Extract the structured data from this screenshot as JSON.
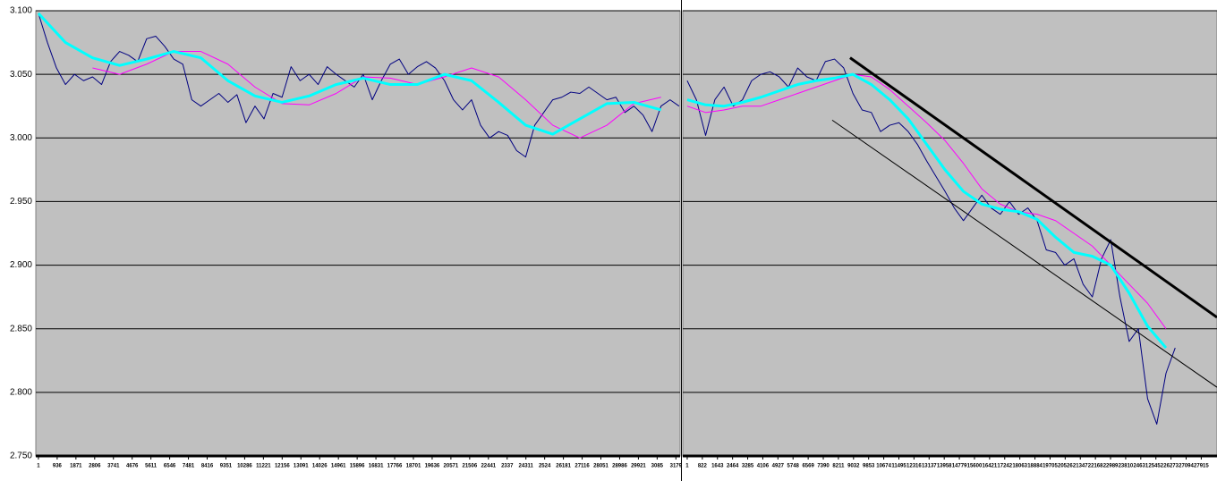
{
  "chart_data": [
    {
      "type": "line",
      "grid": true,
      "show_ytick_labels": true,
      "xlim": [
        -130,
        32000
      ],
      "ylim": [
        2.75,
        3.1
      ],
      "yticks": [
        {
          "value": 2.75,
          "label": "2.750"
        },
        {
          "value": 2.8,
          "label": "2.800"
        },
        {
          "value": 2.85,
          "label": "2.850"
        },
        {
          "value": 2.9,
          "label": "2.900"
        },
        {
          "value": 2.95,
          "label": "2.950"
        },
        {
          "value": 3.0,
          "label": "3.000"
        },
        {
          "value": 3.05,
          "label": "3.050"
        },
        {
          "value": 3.1,
          "label": "3.100"
        }
      ],
      "xticks": [
        1,
        936,
        1871,
        2806,
        3741,
        4676,
        5611,
        6546,
        7481,
        8416,
        9351,
        10286,
        11221,
        12156,
        13091,
        14026,
        14961,
        15896,
        16831,
        17766,
        18701,
        19636,
        20571,
        21506,
        22441,
        {
          "value": 23376,
          "label": "2337"
        },
        24311,
        {
          "value": 25246,
          "label": "2524"
        },
        26181,
        27116,
        28051,
        28986,
        29921,
        {
          "value": 30856,
          "label": "3085"
        },
        {
          "value": 31791,
          "label": "3179"
        }
      ],
      "series": [
        {
          "color": "#000080",
          "line_width": 1,
          "x": [
            0,
            450,
            900,
            1350,
            1800,
            2250,
            2700,
            3150,
            3600,
            4050,
            4500,
            4950,
            5400,
            5850,
            6300,
            6750,
            7200,
            7650,
            8100,
            8550,
            9000,
            9450,
            9900,
            10350,
            10800,
            11250,
            11700,
            12150,
            12600,
            13050,
            13500,
            13950,
            14400,
            14850,
            15300,
            15750,
            16200,
            16650,
            17100,
            17550,
            18000,
            18450,
            18900,
            19350,
            19800,
            20250,
            20700,
            21150,
            21600,
            22050,
            22500,
            22950,
            23400,
            23850,
            24300,
            24750,
            25200,
            25650,
            26100,
            26550,
            27000,
            27450,
            27900,
            28350,
            28800,
            29250,
            29700,
            30150,
            30600,
            31050,
            31500,
            31950
          ],
          "values": [
            3.098,
            3.075,
            3.055,
            3.042,
            3.05,
            3.045,
            3.048,
            3.042,
            3.06,
            3.068,
            3.065,
            3.06,
            3.078,
            3.08,
            3.072,
            3.062,
            3.058,
            3.03,
            3.025,
            3.03,
            3.035,
            3.028,
            3.034,
            3.012,
            3.025,
            3.015,
            3.035,
            3.032,
            3.056,
            3.045,
            3.05,
            3.042,
            3.056,
            3.05,
            3.045,
            3.04,
            3.05,
            3.03,
            3.045,
            3.058,
            3.062,
            3.05,
            3.056,
            3.06,
            3.055,
            3.045,
            3.03,
            3.022,
            3.03,
            3.01,
            3.0,
            3.005,
            3.002,
            2.99,
            2.985,
            3.01,
            3.02,
            3.03,
            3.032,
            3.036,
            3.035,
            3.04,
            3.035,
            3.03,
            3.032,
            3.02,
            3.025,
            3.018,
            3.005,
            3.025,
            3.03,
            3.025
          ]
        },
        {
          "color": "#ff00ff",
          "line_width": 1,
          "x": [
            2700,
            4050,
            5400,
            6750,
            8100,
            9450,
            10800,
            12150,
            13500,
            14850,
            16200,
            17550,
            18900,
            20250,
            21600,
            22950,
            24300,
            25650,
            27000,
            28350,
            29700,
            31050
          ],
          "values": [
            3.055,
            3.05,
            3.058,
            3.068,
            3.068,
            3.058,
            3.04,
            3.027,
            3.026,
            3.035,
            3.048,
            3.047,
            3.042,
            3.048,
            3.055,
            3.048,
            3.03,
            3.01,
            3.0,
            3.01,
            3.027,
            3.032
          ]
        },
        {
          "color": "#00ffff",
          "line_width": 3,
          "x": [
            0,
            1350,
            2700,
            4050,
            5400,
            6750,
            8100,
            9450,
            10800,
            12150,
            13500,
            14850,
            16200,
            17550,
            18900,
            20250,
            21600,
            22950,
            24300,
            25650,
            27000,
            28350,
            29700,
            31050
          ],
          "values": [
            3.098,
            3.075,
            3.063,
            3.057,
            3.062,
            3.068,
            3.063,
            3.045,
            3.033,
            3.028,
            3.033,
            3.042,
            3.047,
            3.042,
            3.042,
            3.05,
            3.045,
            3.028,
            3.01,
            3.003,
            3.015,
            3.027,
            3.028,
            3.022
          ]
        }
      ]
    },
    {
      "type": "line",
      "grid": true,
      "show_ytick_labels": false,
      "xlim": [
        -240,
        28770
      ],
      "ylim": [
        2.75,
        3.1
      ],
      "yticks": [
        2.75,
        2.8,
        2.85,
        2.9,
        2.95,
        3.0,
        3.05,
        3.1
      ],
      "xticks": [
        1,
        822,
        1643,
        2464,
        3285,
        4106,
        4927,
        5748,
        6569,
        7390,
        8211,
        9032,
        9853,
        10674,
        11495,
        12316,
        13137,
        13958,
        14779,
        15600,
        16421,
        17242,
        18063,
        18884,
        19705,
        20526,
        21347,
        22168,
        22989,
        23810,
        24631,
        25452,
        26273,
        27094,
        27915
      ],
      "series": [
        {
          "color": "#000080",
          "line_width": 1,
          "x": [
            0,
            500,
            1000,
            1500,
            2000,
            2500,
            3000,
            3500,
            4000,
            4500,
            5000,
            5500,
            6000,
            6500,
            7000,
            7500,
            8000,
            8500,
            9000,
            9500,
            10000,
            10500,
            11000,
            11500,
            12000,
            12500,
            13000,
            13500,
            14000,
            14500,
            15000,
            15500,
            16000,
            16500,
            17000,
            17500,
            18000,
            18500,
            19000,
            19500,
            20000,
            20500,
            21000,
            21500,
            22000,
            22500,
            23000,
            23500,
            24000,
            24500,
            25000,
            25500,
            26000,
            26500
          ],
          "values": [
            3.045,
            3.03,
            3.002,
            3.03,
            3.04,
            3.025,
            3.03,
            3.045,
            3.05,
            3.052,
            3.048,
            3.04,
            3.055,
            3.048,
            3.045,
            3.06,
            3.062,
            3.055,
            3.035,
            3.022,
            3.02,
            3.005,
            3.01,
            3.012,
            3.005,
            2.995,
            2.982,
            2.97,
            2.958,
            2.945,
            2.935,
            2.945,
            2.955,
            2.945,
            2.94,
            2.95,
            2.94,
            2.945,
            2.935,
            2.912,
            2.91,
            2.9,
            2.905,
            2.885,
            2.875,
            2.905,
            2.92,
            2.875,
            2.84,
            2.85,
            2.795,
            2.775,
            2.815,
            2.835
          ]
        },
        {
          "color": "#ff00ff",
          "line_width": 1,
          "x": [
            0,
            1000,
            2000,
            3000,
            4000,
            5000,
            6000,
            7000,
            8000,
            9000,
            10000,
            11000,
            12000,
            13000,
            14000,
            15000,
            16000,
            17000,
            18000,
            19000,
            20000,
            21000,
            22000,
            23000,
            24000,
            25000,
            26000
          ],
          "values": [
            3.025,
            3.02,
            3.022,
            3.025,
            3.025,
            3.03,
            3.035,
            3.04,
            3.045,
            3.05,
            3.048,
            3.038,
            3.025,
            3.012,
            2.998,
            2.98,
            2.96,
            2.948,
            2.942,
            2.94,
            2.935,
            2.925,
            2.915,
            2.9,
            2.885,
            2.87,
            2.85
          ]
        },
        {
          "color": "#00ffff",
          "line_width": 3,
          "x": [
            0,
            1000,
            2000,
            3000,
            4000,
            5000,
            6000,
            7000,
            8000,
            9000,
            10000,
            11000,
            12000,
            13000,
            14000,
            15000,
            16000,
            17000,
            18000,
            19000,
            20000,
            21000,
            22000,
            23000,
            24000,
            25000,
            26000
          ],
          "values": [
            3.03,
            3.026,
            3.025,
            3.028,
            3.032,
            3.037,
            3.042,
            3.045,
            3.047,
            3.05,
            3.042,
            3.03,
            3.015,
            2.995,
            2.975,
            2.958,
            2.948,
            2.944,
            2.942,
            2.936,
            2.922,
            2.91,
            2.907,
            2.9,
            2.878,
            2.852,
            2.835
          ]
        },
        {
          "color": "#000000",
          "line_width": 3,
          "x": [
            8845,
            28770
          ],
          "values": [
            3.063,
            2.859
          ]
        },
        {
          "color": "#000000",
          "line_width": 1,
          "x": [
            7873,
            28770
          ],
          "values": [
            3.014,
            2.804
          ]
        }
      ]
    }
  ]
}
